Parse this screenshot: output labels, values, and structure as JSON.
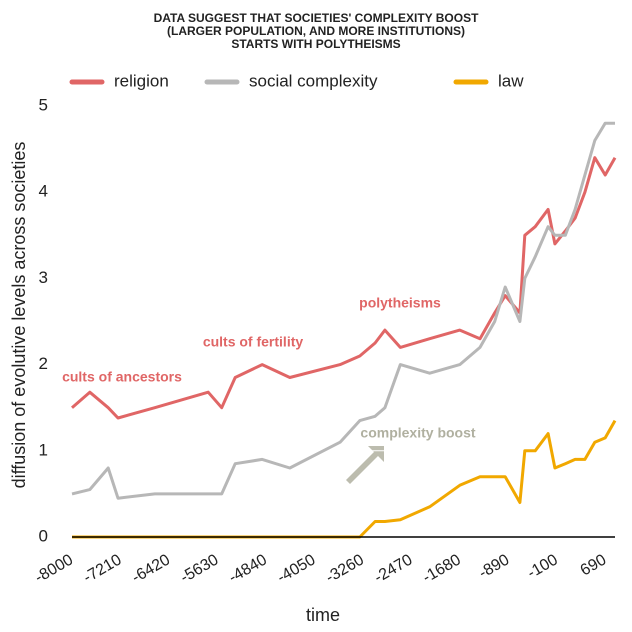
{
  "chart_data": {
    "type": "line",
    "title": [
      "DATA SUGGEST THAT SOCIETIES' COMPLEXITY BOOST",
      "(LARGER POPULATION, AND MORE INSTITUTIONS)",
      "STARTS WITH POLYTHEISMS"
    ],
    "x_label": "time",
    "y_label": "diffusion of evolutive levels across societies",
    "x": [
      -8000,
      -7710,
      -7410,
      -7250,
      -6650,
      -5780,
      -5560,
      -5340,
      -4900,
      -4450,
      -3630,
      -3310,
      -3060,
      -2900,
      -2650,
      -2170,
      -1680,
      -1350,
      -1110,
      -940,
      -700,
      -620,
      -450,
      -240,
      -130,
      40,
      200,
      360,
      520,
      690,
      850
    ],
    "series": [
      {
        "name": "religion",
        "color": "#e06666",
        "values": [
          1.5,
          1.68,
          1.5,
          1.38,
          1.5,
          1.68,
          1.5,
          1.85,
          2.0,
          1.85,
          2.0,
          2.1,
          2.25,
          2.4,
          2.2,
          2.3,
          2.4,
          2.3,
          2.6,
          2.8,
          2.6,
          3.5,
          3.6,
          3.8,
          3.4,
          3.55,
          3.7,
          4.0,
          4.4,
          4.2,
          4.4
        ]
      },
      {
        "name": "social complexity",
        "color": "#b7b7b7",
        "values": [
          0.5,
          0.55,
          0.8,
          0.45,
          0.5,
          0.5,
          0.5,
          0.85,
          0.9,
          0.8,
          1.1,
          1.35,
          1.4,
          1.5,
          2.0,
          1.9,
          2.0,
          2.2,
          2.5,
          2.9,
          2.5,
          3.0,
          3.25,
          3.6,
          3.5,
          3.5,
          3.8,
          4.2,
          4.6,
          4.8,
          4.8
        ]
      },
      {
        "name": "law",
        "color": "#f1a800",
        "values": [
          0,
          0,
          0,
          0,
          0,
          0,
          0,
          0,
          0,
          0,
          0,
          0,
          0.18,
          0.18,
          0.2,
          0.35,
          0.6,
          0.7,
          0.7,
          0.7,
          0.4,
          1.0,
          1.0,
          1.2,
          0.8,
          0.85,
          0.9,
          0.9,
          1.1,
          1.15,
          1.35
        ]
      }
    ],
    "annotations": [
      {
        "text": "cults of ancestors",
        "color": "#e06666"
      },
      {
        "text": "cults of fertility",
        "color": "#e06666"
      },
      {
        "text": "polytheisms",
        "color": "#e06666"
      },
      {
        "text": "complexity boost",
        "color": "#b0b0a0"
      }
    ],
    "xlim": [
      -8000,
      850
    ],
    "xticks": [
      -8000,
      -7210,
      -6420,
      -5630,
      -4840,
      -4050,
      -3260,
      -2470,
      -1680,
      -890,
      -100,
      690
    ],
    "ylim": [
      0,
      5
    ],
    "yticks": [
      0,
      1,
      2,
      3,
      4,
      5
    ],
    "grid": true,
    "legend": "top"
  }
}
